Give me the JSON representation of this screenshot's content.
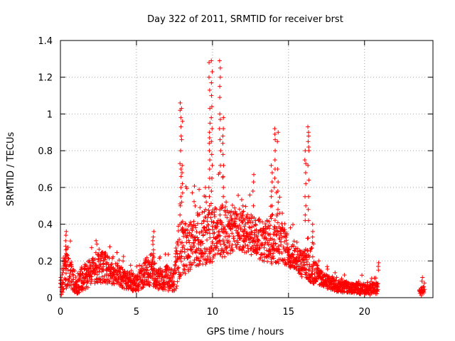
{
  "chart_data": {
    "type": "scatter",
    "title": "Day 322 of 2011, SRMTID for receiver brst",
    "xlabel": "GPS time / hours",
    "ylabel": "SRMTID / TECUs",
    "xlim": [
      0,
      24.5
    ],
    "ylim": [
      0,
      1.4
    ],
    "xticks": [
      0,
      5,
      10,
      15,
      20
    ],
    "yticks": [
      0,
      0.2,
      0.4,
      0.6,
      0.8,
      1,
      1.2,
      1.4
    ],
    "xtick_labels": [
      "0",
      "5",
      "10",
      "15",
      "20"
    ],
    "ytick_labels": [
      "0",
      "0.2",
      "0.4",
      "0.6",
      "0.8",
      "1",
      "1.2",
      "1.4"
    ],
    "grid": true,
    "marker": "+",
    "color": "#ff0000",
    "series": [
      {
        "name": "SRMTID",
        "envelope": [
          {
            "x": 0.0,
            "base": 0.05,
            "spread": 0.1
          },
          {
            "x": 0.3,
            "base": 0.12,
            "spread": 0.22
          },
          {
            "x": 0.5,
            "base": 0.15,
            "spread": 0.22
          },
          {
            "x": 1.0,
            "base": 0.05,
            "spread": 0.08
          },
          {
            "x": 1.5,
            "base": 0.09,
            "spread": 0.16
          },
          {
            "x": 2.0,
            "base": 0.13,
            "spread": 0.14
          },
          {
            "x": 2.8,
            "base": 0.15,
            "spread": 0.17
          },
          {
            "x": 3.5,
            "base": 0.12,
            "spread": 0.12
          },
          {
            "x": 4.5,
            "base": 0.08,
            "spread": 0.1
          },
          {
            "x": 5.0,
            "base": 0.07,
            "spread": 0.1
          },
          {
            "x": 5.5,
            "base": 0.11,
            "spread": 0.13
          },
          {
            "x": 6.0,
            "base": 0.13,
            "spread": 0.16
          },
          {
            "x": 6.5,
            "base": 0.09,
            "spread": 0.12
          },
          {
            "x": 7.5,
            "base": 0.09,
            "spread": 0.14
          },
          {
            "x": 7.8,
            "base": 0.22,
            "spread": 0.35
          },
          {
            "x": 8.5,
            "base": 0.25,
            "spread": 0.25
          },
          {
            "x": 9.0,
            "base": 0.28,
            "spread": 0.28
          },
          {
            "x": 9.5,
            "base": 0.3,
            "spread": 0.3
          },
          {
            "x": 10.5,
            "base": 0.32,
            "spread": 0.3
          },
          {
            "x": 11.5,
            "base": 0.34,
            "spread": 0.2
          },
          {
            "x": 12.5,
            "base": 0.32,
            "spread": 0.22
          },
          {
            "x": 13.5,
            "base": 0.28,
            "spread": 0.22
          },
          {
            "x": 14.2,
            "base": 0.3,
            "spread": 0.3
          },
          {
            "x": 15.0,
            "base": 0.23,
            "spread": 0.15
          },
          {
            "x": 15.8,
            "base": 0.17,
            "spread": 0.14
          },
          {
            "x": 16.5,
            "base": 0.16,
            "spread": 0.2
          },
          {
            "x": 17.0,
            "base": 0.1,
            "spread": 0.08
          },
          {
            "x": 18.0,
            "base": 0.06,
            "spread": 0.07
          },
          {
            "x": 19.0,
            "base": 0.05,
            "spread": 0.06
          },
          {
            "x": 20.0,
            "base": 0.04,
            "spread": 0.06
          },
          {
            "x": 20.9,
            "base": 0.04,
            "spread": 0.07
          },
          {
            "x": 23.8,
            "base": 0.03,
            "spread": 0.05
          }
        ],
        "gaps": [
          [
            20.9,
            23.6
          ]
        ],
        "peaks": [
          {
            "x": 0.35,
            "values": [
              0.36,
              0.34,
              0.31,
              0.28,
              0.26,
              0.24,
              0.22,
              0.2,
              0.18,
              0.16
            ]
          },
          {
            "x": 6.1,
            "values": [
              0.36,
              0.33,
              0.31,
              0.29,
              0.26,
              0.24,
              0.22,
              0.2,
              0.18,
              0.16
            ]
          },
          {
            "x": 7.9,
            "values": [
              1.06,
              1.02,
              0.98,
              0.93,
              0.88,
              0.8,
              0.73,
              0.7,
              0.66,
              0.6,
              0.55,
              0.5,
              0.45,
              0.4
            ]
          },
          {
            "x": 8.0,
            "values": [
              1.03,
              0.96,
              0.86,
              0.72,
              0.68,
              0.62,
              0.57,
              0.52
            ]
          },
          {
            "x": 9.55,
            "values": [
              0.55,
              0.6,
              0.52,
              0.48
            ]
          },
          {
            "x": 9.8,
            "values": [
              1.28,
              1.2,
              1.13,
              1.03,
              0.95,
              0.9,
              0.87,
              0.84,
              0.8,
              0.75,
              0.7,
              0.65,
              0.6,
              0.55,
              0.5
            ]
          },
          {
            "x": 9.95,
            "values": [
              1.29,
              1.23,
              1.17,
              1.1,
              1.04,
              0.98,
              0.92,
              0.85,
              0.78,
              0.72,
              0.65,
              0.58
            ]
          },
          {
            "x": 10.5,
            "values": [
              1.29,
              1.25,
              1.2,
              1.15,
              1.09,
              1.0,
              0.97,
              0.92,
              0.86,
              0.8,
              0.72,
              0.68
            ]
          },
          {
            "x": 10.7,
            "values": [
              0.98,
              0.92,
              0.88,
              0.84,
              0.78,
              0.72,
              0.66,
              0.6,
              0.55
            ]
          },
          {
            "x": 12.0,
            "values": [
              0.5,
              0.47,
              0.45,
              0.43
            ]
          },
          {
            "x": 12.7,
            "values": [
              0.67,
              0.63,
              0.58,
              0.5
            ]
          },
          {
            "x": 13.9,
            "values": [
              0.72,
              0.68,
              0.63,
              0.58,
              0.55,
              0.5
            ]
          },
          {
            "x": 14.1,
            "values": [
              0.92,
              0.89,
              0.86,
              0.8,
              0.75,
              0.7,
              0.65,
              0.6
            ]
          },
          {
            "x": 14.3,
            "values": [
              0.9,
              0.85,
              0.7,
              0.63,
              0.58,
              0.52,
              0.48
            ]
          },
          {
            "x": 16.1,
            "values": [
              0.8,
              0.75,
              0.73,
              0.68,
              0.62,
              0.55,
              0.5,
              0.45,
              0.42
            ]
          },
          {
            "x": 16.3,
            "values": [
              0.93,
              0.9,
              0.88,
              0.85,
              0.82,
              0.8,
              0.72,
              0.64,
              0.55,
              0.48,
              0.42
            ]
          },
          {
            "x": 16.6,
            "values": [
              0.4,
              0.36,
              0.33,
              0.3
            ]
          },
          {
            "x": 20.9,
            "values": [
              0.19,
              0.17,
              0.15
            ]
          },
          {
            "x": 23.8,
            "values": [
              0.11,
              0.09
            ]
          }
        ]
      }
    ]
  }
}
